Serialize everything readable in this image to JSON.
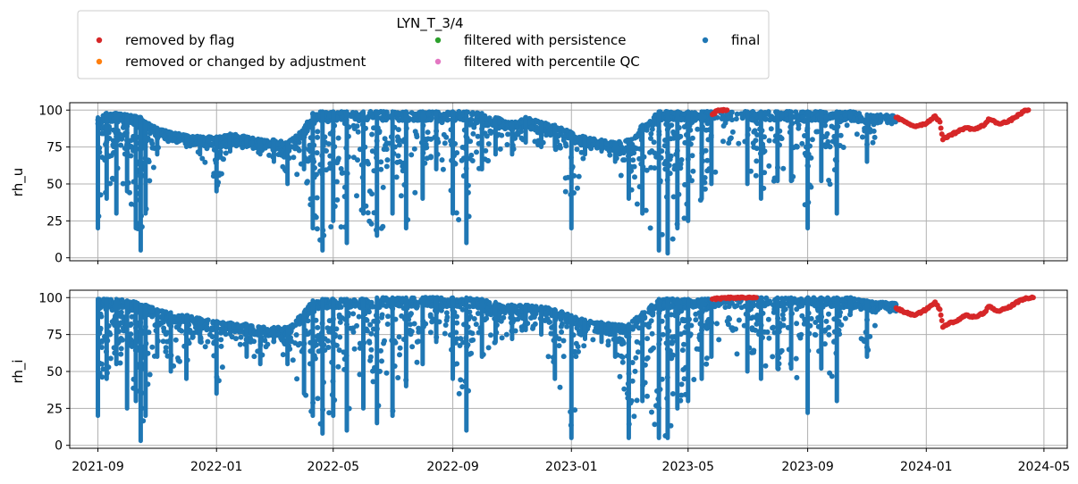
{
  "chart_data": {
    "type": "scatter",
    "legend": {
      "title": "LYN_T_3/4",
      "placement": "top-left, above plots",
      "entries": [
        {
          "label": "removed by flag",
          "color": "#d62728"
        },
        {
          "label": "removed or changed by adjustment",
          "color": "#ff7f0e"
        },
        {
          "label": "filtered with persistence",
          "color": "#2ca02c"
        },
        {
          "label": "filtered with percentile QC",
          "color": "#e377c2"
        },
        {
          "label": "final",
          "color": "#1f77b4"
        }
      ]
    },
    "x_axis": {
      "type": "date",
      "range": [
        "2021-08-03",
        "2024-05-25"
      ],
      "ticks": [
        "2021-09",
        "2022-01",
        "2022-05",
        "2022-09",
        "2023-01",
        "2023-05",
        "2023-09",
        "2024-01",
        "2024-05"
      ],
      "tick_dates": [
        "2021-09-01",
        "2022-01-01",
        "2022-05-01",
        "2022-09-01",
        "2023-01-01",
        "2023-05-01",
        "2023-09-01",
        "2024-01-01",
        "2024-05-01"
      ],
      "grid": true
    },
    "subplots": [
      {
        "ylabel": "rh_u",
        "ylim": [
          -2,
          105
        ],
        "yticks": [
          0,
          25,
          50,
          75,
          100
        ],
        "series": [
          {
            "name": "final",
            "color": "#1f77b4",
            "kind": "dense_band",
            "points": [
              [
                "2021-09-01",
                95,
                20
              ],
              [
                "2021-09-10",
                98,
                40
              ],
              [
                "2021-09-20",
                98,
                30
              ],
              [
                "2021-10-01",
                97,
                45
              ],
              [
                "2021-10-10",
                96,
                20
              ],
              [
                "2021-10-15",
                95,
                5
              ],
              [
                "2021-10-20",
                92,
                30
              ],
              [
                "2021-11-01",
                88,
                70
              ],
              [
                "2021-11-15",
                85,
                80
              ],
              [
                "2021-12-01",
                83,
                75
              ],
              [
                "2021-12-15",
                82,
                70
              ],
              [
                "2022-01-01",
                82,
                45
              ],
              [
                "2022-01-15",
                84,
                72
              ],
              [
                "2022-02-01",
                82,
                75
              ],
              [
                "2022-02-15",
                80,
                70
              ],
              [
                "2022-03-01",
                80,
                65
              ],
              [
                "2022-03-15",
                78,
                50
              ],
              [
                "2022-04-01",
                88,
                60
              ],
              [
                "2022-04-10",
                98,
                20
              ],
              [
                "2022-04-20",
                99,
                5
              ],
              [
                "2022-05-01",
                99,
                25
              ],
              [
                "2022-05-15",
                99,
                10
              ],
              [
                "2022-06-01",
                99,
                30
              ],
              [
                "2022-06-15",
                99,
                15
              ],
              [
                "2022-07-01",
                99,
                30
              ],
              [
                "2022-07-15",
                99,
                20
              ],
              [
                "2022-08-01",
                99,
                40
              ],
              [
                "2022-08-15",
                99,
                60
              ],
              [
                "2022-09-01",
                99,
                30
              ],
              [
                "2022-09-15",
                99,
                10
              ],
              [
                "2022-10-01",
                98,
                60
              ],
              [
                "2022-10-15",
                95,
                70
              ],
              [
                "2022-11-01",
                92,
                70
              ],
              [
                "2022-11-15",
                95,
                78
              ],
              [
                "2022-12-01",
                92,
                75
              ],
              [
                "2022-12-15",
                90,
                75
              ],
              [
                "2023-01-01",
                85,
                20
              ],
              [
                "2023-01-15",
                82,
                70
              ],
              [
                "2023-02-01",
                80,
                72
              ],
              [
                "2023-02-15",
                78,
                65
              ],
              [
                "2023-03-01",
                80,
                40
              ],
              [
                "2023-03-15",
                90,
                30
              ],
              [
                "2023-04-01",
                99,
                5
              ],
              [
                "2023-04-10",
                99,
                3
              ],
              [
                "2023-04-20",
                99,
                20
              ],
              [
                "2023-05-01",
                99,
                25
              ],
              [
                "2023-05-15",
                99,
                40
              ],
              [
                "2023-05-25",
                99,
                50
              ],
              [
                "2023-07-01",
                99,
                50
              ],
              [
                "2023-07-15",
                99,
                40
              ],
              [
                "2023-08-01",
                99,
                52
              ],
              [
                "2023-08-15",
                99,
                52
              ],
              [
                "2023-09-01",
                99,
                20
              ],
              [
                "2023-09-15",
                99,
                52
              ],
              [
                "2023-10-01",
                99,
                30
              ],
              [
                "2023-10-15",
                99,
                95
              ],
              [
                "2023-11-01",
                97,
                65
              ],
              [
                "2023-11-15",
                97,
                93
              ],
              [
                "2023-12-01",
                96,
                92
              ]
            ]
          },
          {
            "name": "removed by flag",
            "color": "#d62728",
            "kind": "line_points",
            "points": [
              [
                "2023-05-26",
                97
              ],
              [
                "2023-06-01",
                100
              ],
              [
                "2023-06-10",
                100
              ],
              [
                "2023-12-01",
                95
              ],
              [
                "2023-12-10",
                92
              ],
              [
                "2023-12-20",
                89
              ],
              [
                "2024-01-01",
                91
              ],
              [
                "2024-01-10",
                96
              ],
              [
                "2024-01-15",
                92
              ],
              [
                "2024-01-18",
                80
              ],
              [
                "2024-01-25",
                83
              ],
              [
                "2024-02-01",
                85
              ],
              [
                "2024-02-10",
                88
              ],
              [
                "2024-02-20",
                87
              ],
              [
                "2024-03-01",
                90
              ],
              [
                "2024-03-05",
                94
              ],
              [
                "2024-03-15",
                91
              ],
              [
                "2024-03-25",
                92
              ],
              [
                "2024-04-01",
                95
              ],
              [
                "2024-04-10",
                99
              ],
              [
                "2024-04-15",
                100
              ]
            ]
          }
        ]
      },
      {
        "ylabel": "rh_i",
        "ylim": [
          -2,
          105
        ],
        "yticks": [
          0,
          25,
          50,
          75,
          100
        ],
        "series": [
          {
            "name": "final",
            "color": "#1f77b4",
            "kind": "dense_band",
            "points": [
              [
                "2021-09-01",
                99,
                20
              ],
              [
                "2021-09-10",
                99,
                45
              ],
              [
                "2021-09-20",
                99,
                55
              ],
              [
                "2021-10-01",
                98,
                25
              ],
              [
                "2021-10-10",
                97,
                30
              ],
              [
                "2021-10-15",
                95,
                3
              ],
              [
                "2021-10-20",
                95,
                20
              ],
              [
                "2021-11-01",
                92,
                60
              ],
              [
                "2021-11-15",
                90,
                50
              ],
              [
                "2021-12-01",
                88,
                45
              ],
              [
                "2021-12-15",
                86,
                70
              ],
              [
                "2022-01-01",
                84,
                35
              ],
              [
                "2022-01-15",
                83,
                75
              ],
              [
                "2022-02-01",
                82,
                60
              ],
              [
                "2022-02-15",
                80,
                55
              ],
              [
                "2022-03-01",
                80,
                70
              ],
              [
                "2022-03-15",
                80,
                55
              ],
              [
                "2022-04-01",
                90,
                35
              ],
              [
                "2022-04-10",
                98,
                20
              ],
              [
                "2022-04-20",
                99,
                8
              ],
              [
                "2022-05-01",
                99,
                20
              ],
              [
                "2022-05-15",
                99,
                10
              ],
              [
                "2022-06-01",
                99,
                25
              ],
              [
                "2022-06-15",
                100,
                15
              ],
              [
                "2022-07-01",
                100,
                20
              ],
              [
                "2022-07-15",
                100,
                40
              ],
              [
                "2022-08-01",
                100,
                55
              ],
              [
                "2022-08-15",
                100,
                70
              ],
              [
                "2022-09-01",
                100,
                45
              ],
              [
                "2022-09-15",
                100,
                10
              ],
              [
                "2022-10-01",
                99,
                60
              ],
              [
                "2022-10-15",
                97,
                70
              ],
              [
                "2022-11-01",
                95,
                72
              ],
              [
                "2022-11-15",
                95,
                78
              ],
              [
                "2022-12-01",
                94,
                75
              ],
              [
                "2022-12-15",
                92,
                45
              ],
              [
                "2023-01-01",
                88,
                5
              ],
              [
                "2023-01-15",
                85,
                72
              ],
              [
                "2023-02-01",
                83,
                70
              ],
              [
                "2023-02-15",
                82,
                60
              ],
              [
                "2023-03-01",
                82,
                5
              ],
              [
                "2023-03-15",
                90,
                30
              ],
              [
                "2023-04-01",
                99,
                5
              ],
              [
                "2023-04-10",
                99,
                5
              ],
              [
                "2023-04-20",
                99,
                25
              ],
              [
                "2023-05-01",
                99,
                30
              ],
              [
                "2023-05-15",
                99,
                45
              ],
              [
                "2023-05-25",
                99,
                60
              ],
              [
                "2023-07-01",
                100,
                50
              ],
              [
                "2023-07-15",
                100,
                45
              ],
              [
                "2023-08-01",
                100,
                52
              ],
              [
                "2023-08-15",
                100,
                52
              ],
              [
                "2023-09-01",
                100,
                22
              ],
              [
                "2023-09-15",
                100,
                52
              ],
              [
                "2023-10-01",
                100,
                30
              ],
              [
                "2023-10-15",
                100,
                90
              ],
              [
                "2023-11-01",
                98,
                60
              ],
              [
                "2023-11-15",
                97,
                93
              ],
              [
                "2023-12-01",
                96,
                93
              ]
            ]
          },
          {
            "name": "removed by flag",
            "color": "#d62728",
            "kind": "line_points",
            "points": [
              [
                "2023-05-26",
                99
              ],
              [
                "2023-06-15",
                100
              ],
              [
                "2023-07-10",
                100
              ],
              [
                "2023-12-01",
                93
              ],
              [
                "2023-12-10",
                90
              ],
              [
                "2023-12-20",
                88
              ],
              [
                "2024-01-01",
                92
              ],
              [
                "2024-01-10",
                97
              ],
              [
                "2024-01-15",
                92
              ],
              [
                "2024-01-18",
                80
              ],
              [
                "2024-01-25",
                83
              ],
              [
                "2024-02-01",
                84
              ],
              [
                "2024-02-10",
                88
              ],
              [
                "2024-02-20",
                87
              ],
              [
                "2024-03-01",
                90
              ],
              [
                "2024-03-05",
                94
              ],
              [
                "2024-03-15",
                91
              ],
              [
                "2024-03-25",
                93
              ],
              [
                "2024-04-01",
                96
              ],
              [
                "2024-04-10",
                99
              ],
              [
                "2024-04-20",
                100
              ]
            ]
          }
        ]
      }
    ]
  }
}
